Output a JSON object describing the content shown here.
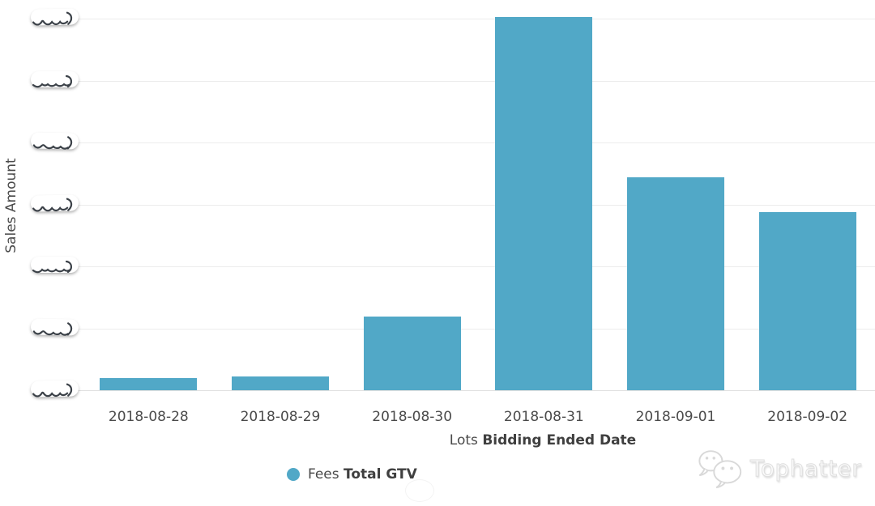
{
  "chart_data": {
    "type": "bar",
    "title": "",
    "categories": [
      "2018-08-28",
      "2018-08-29",
      "2018-08-30",
      "2018-08-31",
      "2018-09-01",
      "2018-09-02"
    ],
    "values": [
      0.2,
      0.22,
      1.19,
      6.03,
      3.44,
      2.88
    ],
    "values_unit": "y-gridline steps (y-axis tick labels are scribbled out / unreadable in source image)",
    "ylim": [
      0,
      6
    ],
    "gridline_count": 7,
    "grid": "horizontal-only",
    "y_tick_labels_redacted": true,
    "ylabel": "Sales Amount",
    "xlabel_prefix": "Lots",
    "xlabel_bold": "Bidding Ended Date",
    "legend_position": "bottom-left",
    "legend_prefix": "Fees",
    "legend_bold": "Total GTV",
    "bar_color": "#51A8C7"
  },
  "watermark": {
    "brand": "Tophatter",
    "icon": "wechat-chat-bubbles"
  }
}
